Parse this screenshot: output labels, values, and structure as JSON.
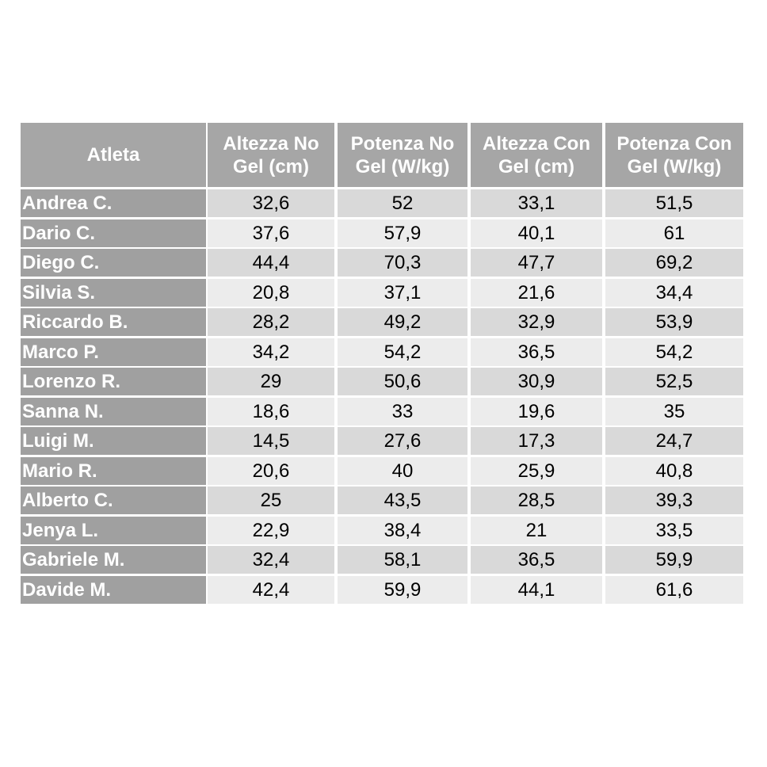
{
  "table": {
    "header": [
      "Atleta",
      "Altezza No Gel (cm)",
      "Potenza No Gel (W/kg)",
      "Altezza Con Gel (cm)",
      "Potenza Con Gel (W/kg)"
    ],
    "rows": [
      [
        "Andrea C.",
        "32,6",
        "52",
        "33,1",
        "51,5"
      ],
      [
        "Dario C.",
        "37,6",
        "57,9",
        "40,1",
        "61"
      ],
      [
        "Diego C.",
        "44,4",
        "70,3",
        "47,7",
        "69,2"
      ],
      [
        "Silvia S.",
        "20,8",
        "37,1",
        "21,6",
        "34,4"
      ],
      [
        "Riccardo B.",
        "28,2",
        "49,2",
        "32,9",
        "53,9"
      ],
      [
        "Marco P.",
        "34,2",
        "54,2",
        "36,5",
        "54,2"
      ],
      [
        "Lorenzo R.",
        "29",
        "50,6",
        "30,9",
        "52,5"
      ],
      [
        "Sanna N.",
        "18,6",
        "33",
        "19,6",
        "35"
      ],
      [
        "Luigi M.",
        "14,5",
        "27,6",
        "17,3",
        "24,7"
      ],
      [
        "Mario R.",
        "20,6",
        "40",
        "25,9",
        "40,8"
      ],
      [
        "Alberto C.",
        "25",
        "43,5",
        "28,5",
        "39,3"
      ],
      [
        "Jenya L.",
        "22,9",
        "38,4",
        "21",
        "33,5"
      ],
      [
        "Gabriele M.",
        "32,4",
        "58,1",
        "36,5",
        "59,9"
      ],
      [
        "Davide M.",
        "42,4",
        "59,9",
        "44,1",
        "61,6"
      ]
    ]
  }
}
